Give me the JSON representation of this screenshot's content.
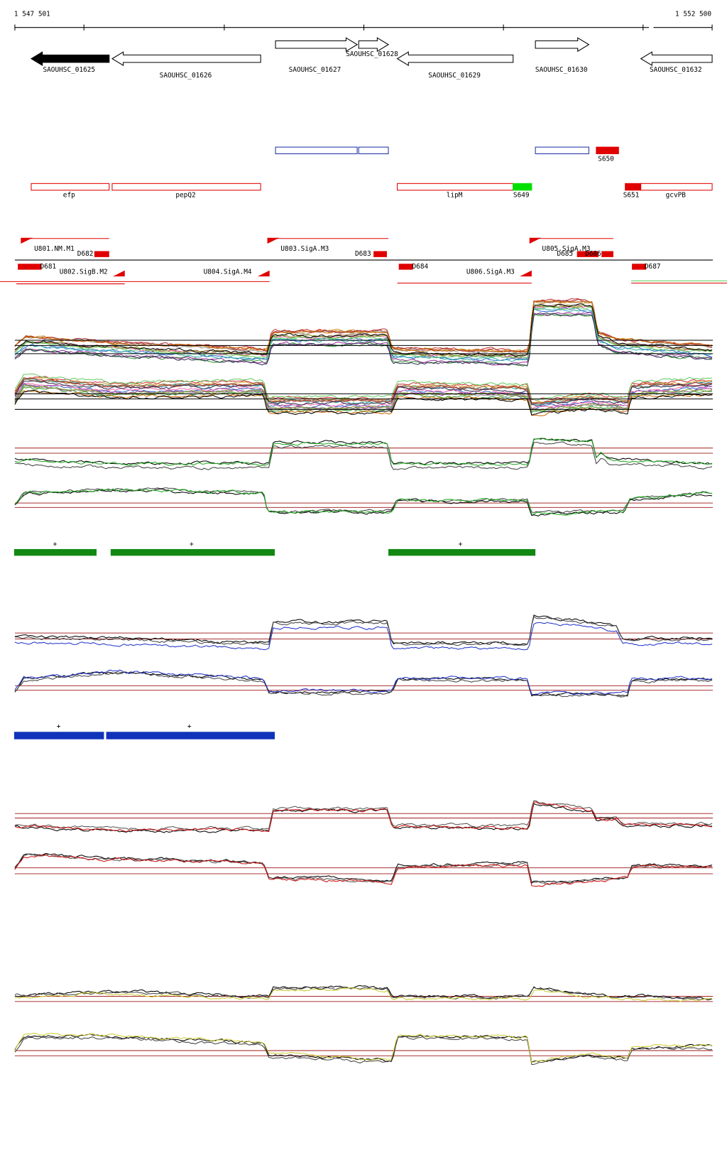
{
  "ruler": {
    "start": "1 547 501",
    "end": "1 552 500"
  },
  "genes": [
    "SAOUHSC_01625",
    "SAOUHSC_01626",
    "SAOUHSC_01627",
    "SAOUHSC_01628",
    "SAOUHSC_01629",
    "SAOUHSC_01630",
    "SAOUHSC_01632"
  ],
  "features": [
    "S650",
    "efp",
    "pepQ2",
    "lipM",
    "S649",
    "S651",
    "gcvPB"
  ],
  "promoters": [
    "U801.NM.M1",
    "D682",
    "D681",
    "U802.SigB.M2",
    "U804.SigA.M4",
    "U803.SigA.M3",
    "D683",
    "D684",
    "U806.SigA.M3",
    "U805.SigA.M3",
    "D685",
    "D686",
    "D687"
  ],
  "green_bars": [
    "+",
    "+",
    "+"
  ],
  "blue_bars": [
    "+",
    "+"
  ]
}
